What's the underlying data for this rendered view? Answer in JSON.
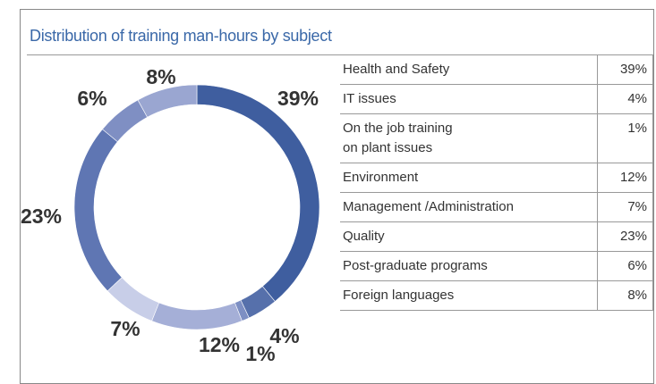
{
  "chart_data": {
    "type": "donut",
    "title": "Distribution of training man-hours by subject",
    "categories": [
      "Health and Safety",
      "IT issues",
      "On the job training\non plant issues",
      "Environment",
      "Management /Administration",
      "Quality",
      "Post-graduate programs",
      "Foreign languages"
    ],
    "values": [
      39,
      4,
      1,
      12,
      7,
      23,
      6,
      8
    ],
    "value_labels": [
      "39%",
      "4%",
      "1%",
      "12%",
      "7%",
      "23%",
      "6%",
      "8%"
    ],
    "colors": [
      "#3f5e9f",
      "#5670ab",
      "#7d8fc3",
      "#a5afd7",
      "#c8cee8",
      "#5f76b3",
      "#7f8fc3",
      "#9aa6d1"
    ]
  }
}
